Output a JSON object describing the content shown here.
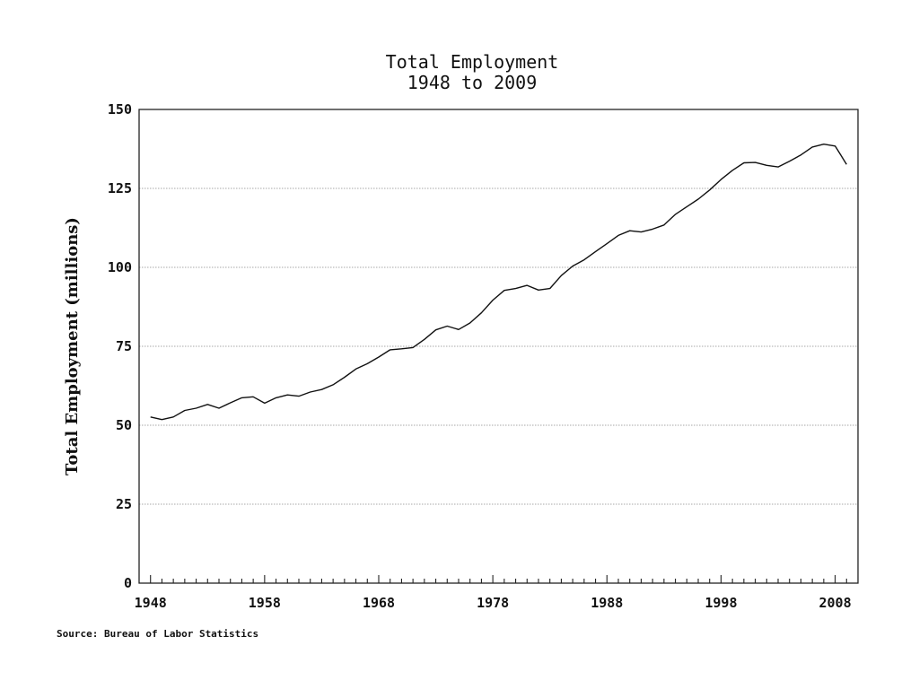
{
  "chart_data": {
    "type": "line",
    "title": "Total Employment",
    "subtitle": "1948 to 2009",
    "ylabel": "Total Employment (millions)",
    "xlabel": "",
    "xlim": [
      1947,
      2010
    ],
    "ylim": [
      0,
      150
    ],
    "yticks": [
      0,
      25,
      50,
      75,
      100,
      125,
      150
    ],
    "xticks": [
      1948,
      1958,
      1968,
      1978,
      1988,
      1998,
      2008
    ],
    "grid": "horizontal-dotted",
    "series": [
      {
        "x": [
          1948,
          1949,
          1950,
          1951,
          1952,
          1953,
          1954,
          1955,
          1956,
          1957,
          1958,
          1959,
          1960,
          1961,
          1962,
          1963,
          1964,
          1965,
          1966,
          1967,
          1968,
          1969,
          1970,
          1971,
          1972,
          1973,
          1974,
          1975,
          1976,
          1977,
          1978,
          1979,
          1980,
          1981,
          1982,
          1983,
          1984,
          1985,
          1986,
          1987,
          1988,
          1989,
          1990,
          1991,
          1992,
          1993,
          1994,
          1995,
          1996,
          1997,
          1998,
          1999,
          2000,
          2001,
          2002,
          2003,
          2004,
          2005,
          2006,
          2007,
          2008,
          2009
        ],
        "values": [
          52.6,
          51.8,
          52.6,
          54.7,
          55.4,
          56.6,
          55.4,
          57.1,
          58.7,
          59.0,
          57.0,
          58.7,
          59.6,
          59.2,
          60.5,
          61.3,
          62.8,
          65.2,
          67.8,
          69.5,
          71.6,
          73.9,
          74.2,
          74.6,
          77.2,
          80.2,
          81.4,
          80.3,
          82.4,
          85.6,
          89.6,
          92.7,
          93.3,
          94.3,
          92.8,
          93.3,
          97.4,
          100.4,
          102.4,
          105.0,
          107.5,
          110.1,
          111.6,
          111.2,
          112.1,
          113.4,
          116.8,
          119.2,
          121.6,
          124.5,
          127.8,
          130.7,
          133.1,
          133.2,
          132.3,
          131.8,
          133.6,
          135.6,
          138.1,
          139.0,
          138.4,
          132.6
        ]
      }
    ],
    "source": "Source: Bureau of Labor Statistics"
  }
}
